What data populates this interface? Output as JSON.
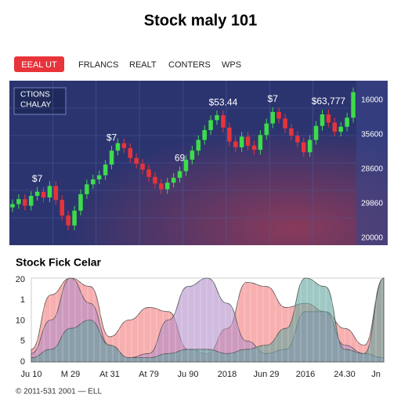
{
  "header": {
    "title": "Stock maly 101"
  },
  "tabs": [
    "EEAL UT",
    "FRLANCS",
    "REALT",
    "CONTERS",
    "WPS"
  ],
  "footer": "© 2011-531 2001 — ELL",
  "chart_data": [
    {
      "type": "candlestick",
      "legend_box": [
        "CTIONS",
        "CHALAY"
      ],
      "y_labels": [
        "16000",
        "35600",
        "28600",
        "29860",
        "20000"
      ],
      "ylim": [
        20000,
        40000
      ],
      "up_color": "#3ddc4a",
      "down_color": "#e8333a",
      "open": [
        24600,
        25000,
        25600,
        24800,
        26000,
        26500,
        25800,
        27200,
        25500,
        23600,
        22400,
        24200,
        26200,
        27400,
        28000,
        28500,
        29800,
        31500,
        32400,
        31800,
        30600,
        29900,
        29200,
        28300,
        27500,
        26800,
        27600,
        28200,
        29000,
        30400,
        31500,
        32800,
        34000,
        35200,
        35800,
        34300,
        32600,
        31900,
        33200,
        32100,
        31600,
        33400,
        34800,
        36200,
        35400,
        34200,
        33300,
        32500,
        31300,
        32800,
        34500,
        35900,
        34900,
        33800,
        34400,
        35500
      ],
      "close": [
        25000,
        25600,
        24800,
        26000,
        26500,
        25800,
        27200,
        25500,
        23600,
        22400,
        24200,
        26200,
        27400,
        28000,
        28500,
        29800,
        31500,
        32400,
        31800,
        30600,
        29900,
        29200,
        28300,
        27500,
        26800,
        27600,
        28200,
        29000,
        30400,
        31500,
        32800,
        34000,
        35200,
        35800,
        34300,
        32600,
        31900,
        33200,
        32100,
        31600,
        33400,
        34800,
        36200,
        35400,
        34200,
        33300,
        32500,
        31300,
        32800,
        34500,
        35900,
        34900,
        33800,
        34400,
        35500,
        38600
      ],
      "annotations": [
        {
          "text": "$7",
          "index": 4
        },
        {
          "text": "$7",
          "index": 16
        },
        {
          "text": "69",
          "index": 27
        },
        {
          "text": "$53.44",
          "index": 34
        },
        {
          "text": "$7",
          "index": 42
        },
        {
          "text": "$63,777",
          "index": 51
        }
      ]
    },
    {
      "type": "area",
      "title": "Stock Fick Celar",
      "y_labels": [
        "20",
        "1",
        "10",
        "5",
        "0"
      ],
      "ylim": [
        0,
        20
      ],
      "categories": [
        "Ju 10",
        null,
        "M 29",
        null,
        "At 31",
        null,
        "At 79",
        null,
        "Ju 90",
        null,
        "2018",
        null,
        "Jun 29",
        null,
        "2016",
        null,
        "24.30",
        null,
        "Jn"
      ],
      "series": [
        {
          "color": "#f47a7a",
          "values": [
            3,
            16,
            20,
            18,
            6,
            10,
            13,
            12,
            3,
            2,
            8,
            19,
            18,
            13,
            14,
            12,
            8,
            4,
            20
          ]
        },
        {
          "color": "#b08cc8",
          "values": [
            2,
            10,
            20,
            14,
            4,
            1,
            2,
            10,
            18,
            20,
            14,
            5,
            2,
            3,
            12,
            12,
            4,
            2,
            1
          ]
        },
        {
          "color": "#5fa39c",
          "values": [
            1,
            3,
            8,
            10,
            4,
            1,
            1,
            2,
            3,
            3,
            2,
            3,
            4,
            8,
            20,
            18,
            3,
            2,
            20
          ]
        }
      ]
    }
  ]
}
